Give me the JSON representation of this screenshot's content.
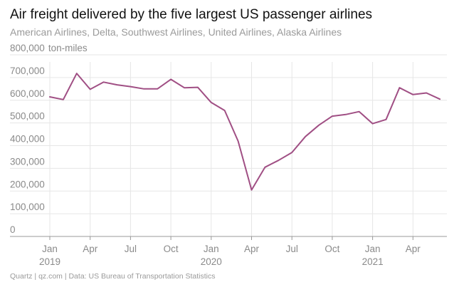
{
  "chart_data": {
    "type": "line",
    "title": "Air freight delivered by the five largest US passenger airlines",
    "subtitle": "American Airlines, Delta, Southwest Airlines, United Airlines, Alaska Airlines",
    "ylabel": "ton-miles",
    "ylim": [
      0,
      800000
    ],
    "yticks": [
      {
        "value": 0,
        "label": "0"
      },
      {
        "value": 100000,
        "label": "100,000"
      },
      {
        "value": 200000,
        "label": "200,000"
      },
      {
        "value": 300000,
        "label": "300,000"
      },
      {
        "value": 400000,
        "label": "400,000"
      },
      {
        "value": 500000,
        "label": "500,000"
      },
      {
        "value": 600000,
        "label": "600,000"
      },
      {
        "value": 700000,
        "label": "700,000"
      },
      {
        "value": 800000,
        "label": "800,000"
      }
    ],
    "top_tick_unit": "ton-miles",
    "xticks": [
      {
        "index": 0,
        "label": "Jan",
        "year": "2019"
      },
      {
        "index": 3,
        "label": "Apr"
      },
      {
        "index": 6,
        "label": "Jul"
      },
      {
        "index": 9,
        "label": "Oct"
      },
      {
        "index": 12,
        "label": "Jan",
        "year": "2020"
      },
      {
        "index": 15,
        "label": "Apr"
      },
      {
        "index": 18,
        "label": "Jul"
      },
      {
        "index": 21,
        "label": "Oct"
      },
      {
        "index": 24,
        "label": "Jan",
        "year": "2021"
      },
      {
        "index": 27,
        "label": "Apr"
      }
    ],
    "series": [
      {
        "name": "Air freight",
        "color": "#a04f84",
        "values": [
          615000,
          603000,
          718000,
          648000,
          680000,
          668000,
          660000,
          650000,
          650000,
          692000,
          655000,
          657000,
          590000,
          555000,
          420000,
          205000,
          305000,
          335000,
          370000,
          440000,
          490000,
          530000,
          537000,
          550000,
          497000,
          515000,
          655000,
          625000,
          632000,
          605000
        ]
      }
    ],
    "line_color": "#a04f84",
    "grid_color": "#e6e6e6",
    "axis_color": "#999999"
  },
  "footer": "Quartz | qz.com | Data: US Bureau of Transportation Statistics"
}
